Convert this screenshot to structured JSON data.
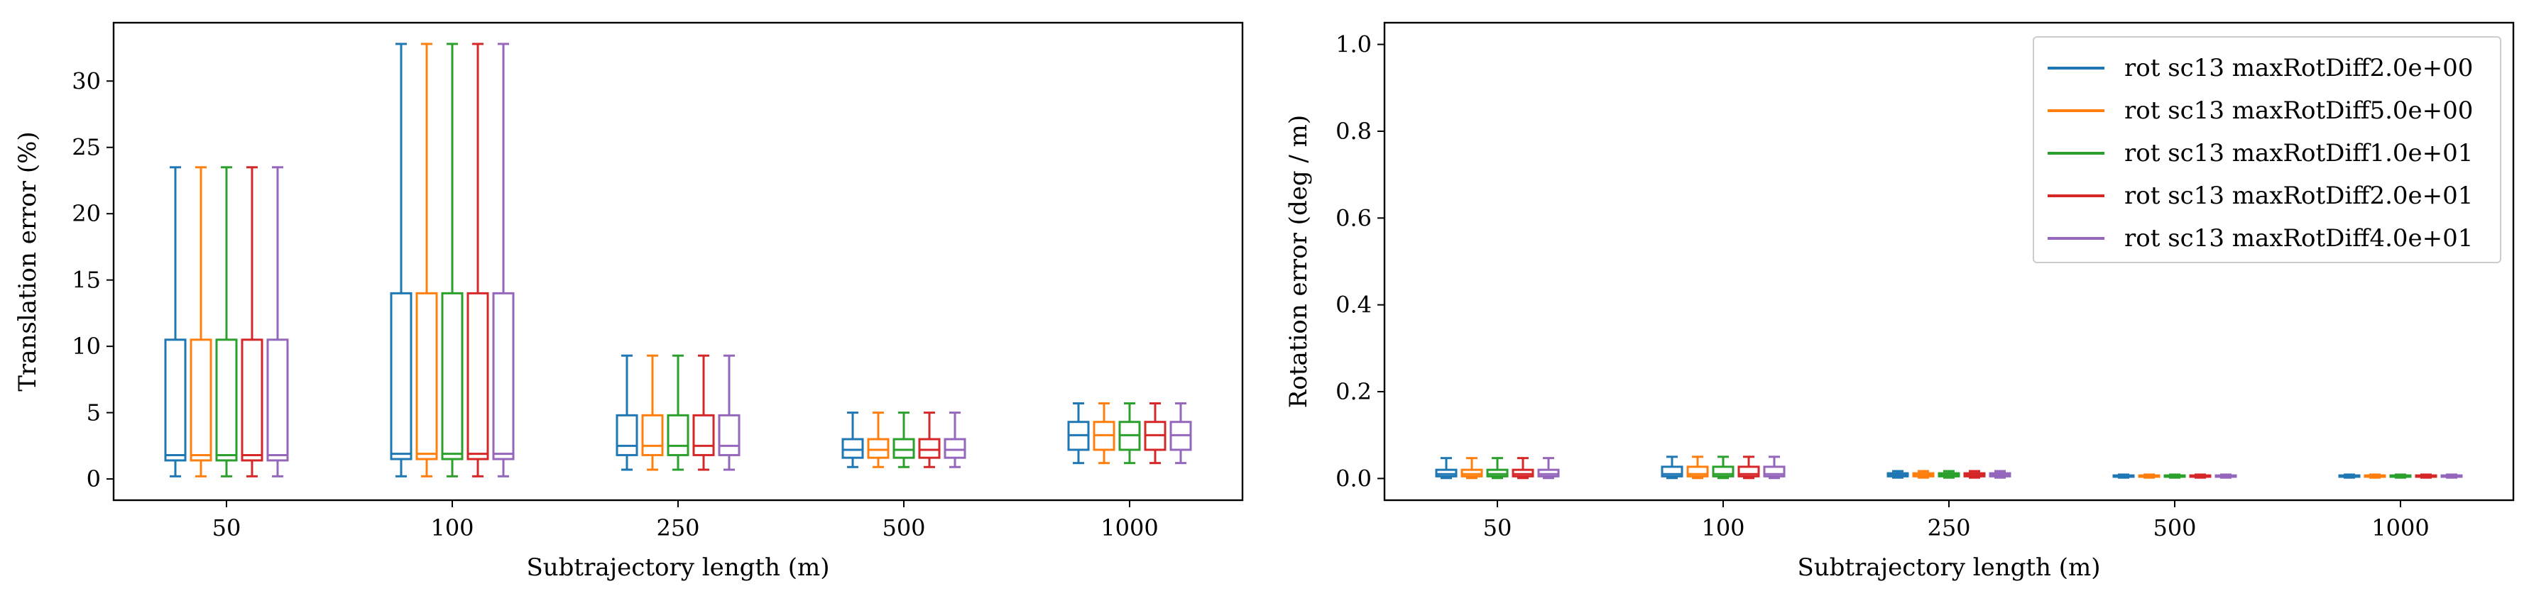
{
  "chart_data": [
    {
      "type": "box",
      "categories": [
        "50",
        "100",
        "250",
        "500",
        "1000"
      ],
      "xlabel": "Subtrajectory length (m)",
      "ylabel": "Translation error (%)",
      "ylim": [
        -1.6,
        34.4
      ],
      "yticks": [
        0,
        5,
        10,
        15,
        20,
        25,
        30
      ],
      "grid": false,
      "series": [
        {
          "name": "rot sc13 maxRotDiff2.0e+00",
          "color": "#1f77b4",
          "boxes": [
            {
              "whislo": 0.2,
              "q1": 1.4,
              "med": 1.8,
              "q3": 10.5,
              "whishi": 23.5
            },
            {
              "whislo": 0.2,
              "q1": 1.5,
              "med": 1.9,
              "q3": 14.0,
              "whishi": 32.8
            },
            {
              "whislo": 0.7,
              "q1": 1.8,
              "med": 2.5,
              "q3": 4.8,
              "whishi": 9.3
            },
            {
              "whislo": 0.9,
              "q1": 1.6,
              "med": 2.2,
              "q3": 3.0,
              "whishi": 5.0
            },
            {
              "whislo": 1.2,
              "q1": 2.2,
              "med": 3.3,
              "q3": 4.3,
              "whishi": 5.7
            }
          ]
        },
        {
          "name": "rot sc13 maxRotDiff5.0e+00",
          "color": "#ff7f0e",
          "boxes": [
            {
              "whislo": 0.2,
              "q1": 1.4,
              "med": 1.8,
              "q3": 10.5,
              "whishi": 23.5
            },
            {
              "whislo": 0.2,
              "q1": 1.5,
              "med": 1.9,
              "q3": 14.0,
              "whishi": 32.8
            },
            {
              "whislo": 0.7,
              "q1": 1.8,
              "med": 2.5,
              "q3": 4.8,
              "whishi": 9.3
            },
            {
              "whislo": 0.9,
              "q1": 1.6,
              "med": 2.2,
              "q3": 3.0,
              "whishi": 5.0
            },
            {
              "whislo": 1.2,
              "q1": 2.2,
              "med": 3.3,
              "q3": 4.3,
              "whishi": 5.7
            }
          ]
        },
        {
          "name": "rot sc13 maxRotDiff1.0e+01",
          "color": "#2ca02c",
          "boxes": [
            {
              "whislo": 0.2,
              "q1": 1.4,
              "med": 1.8,
              "q3": 10.5,
              "whishi": 23.5
            },
            {
              "whislo": 0.2,
              "q1": 1.5,
              "med": 1.9,
              "q3": 14.0,
              "whishi": 32.8
            },
            {
              "whislo": 0.7,
              "q1": 1.8,
              "med": 2.5,
              "q3": 4.8,
              "whishi": 9.3
            },
            {
              "whislo": 0.9,
              "q1": 1.6,
              "med": 2.2,
              "q3": 3.0,
              "whishi": 5.0
            },
            {
              "whislo": 1.2,
              "q1": 2.2,
              "med": 3.3,
              "q3": 4.3,
              "whishi": 5.7
            }
          ]
        },
        {
          "name": "rot sc13 maxRotDiff2.0e+01",
          "color": "#d62728",
          "boxes": [
            {
              "whislo": 0.2,
              "q1": 1.4,
              "med": 1.8,
              "q3": 10.5,
              "whishi": 23.5
            },
            {
              "whislo": 0.2,
              "q1": 1.5,
              "med": 1.9,
              "q3": 14.0,
              "whishi": 32.8
            },
            {
              "whislo": 0.7,
              "q1": 1.8,
              "med": 2.5,
              "q3": 4.8,
              "whishi": 9.3
            },
            {
              "whislo": 0.9,
              "q1": 1.6,
              "med": 2.2,
              "q3": 3.0,
              "whishi": 5.0
            },
            {
              "whislo": 1.2,
              "q1": 2.2,
              "med": 3.3,
              "q3": 4.3,
              "whishi": 5.7
            }
          ]
        },
        {
          "name": "rot sc13 maxRotDiff4.0e+01",
          "color": "#9467bd",
          "boxes": [
            {
              "whislo": 0.2,
              "q1": 1.4,
              "med": 1.8,
              "q3": 10.5,
              "whishi": 23.5
            },
            {
              "whislo": 0.2,
              "q1": 1.5,
              "med": 1.9,
              "q3": 14.0,
              "whishi": 32.8
            },
            {
              "whislo": 0.7,
              "q1": 1.8,
              "med": 2.5,
              "q3": 4.8,
              "whishi": 9.3
            },
            {
              "whislo": 0.9,
              "q1": 1.6,
              "med": 2.2,
              "q3": 3.0,
              "whishi": 5.0
            },
            {
              "whislo": 1.2,
              "q1": 2.2,
              "med": 3.3,
              "q3": 4.3,
              "whishi": 5.7
            }
          ]
        }
      ]
    },
    {
      "type": "box",
      "categories": [
        "50",
        "100",
        "250",
        "500",
        "1000"
      ],
      "xlabel": "Subtrajectory length (m)",
      "ylabel": "Rotation error (deg / m)",
      "ylim": [
        -0.05,
        1.05
      ],
      "yticks": [
        0.0,
        0.2,
        0.4,
        0.6,
        0.8,
        1.0
      ],
      "grid": false,
      "legend": "top-right",
      "series": [
        {
          "name": "rot sc13 maxRotDiff2.0e+00",
          "color": "#1f77b4",
          "boxes": [
            {
              "whislo": 0.001,
              "q1": 0.005,
              "med": 0.01,
              "q3": 0.02,
              "whishi": 0.047
            },
            {
              "whislo": 0.001,
              "q1": 0.005,
              "med": 0.01,
              "q3": 0.027,
              "whishi": 0.05
            },
            {
              "whislo": 0.002,
              "q1": 0.005,
              "med": 0.008,
              "q3": 0.012,
              "whishi": 0.017
            },
            {
              "whislo": 0.002,
              "q1": 0.004,
              "med": 0.005,
              "q3": 0.007,
              "whishi": 0.009
            },
            {
              "whislo": 0.002,
              "q1": 0.004,
              "med": 0.005,
              "q3": 0.007,
              "whishi": 0.009
            }
          ]
        },
        {
          "name": "rot sc13 maxRotDiff5.0e+00",
          "color": "#ff7f0e",
          "boxes": [
            {
              "whislo": 0.001,
              "q1": 0.005,
              "med": 0.01,
              "q3": 0.02,
              "whishi": 0.047
            },
            {
              "whislo": 0.001,
              "q1": 0.005,
              "med": 0.01,
              "q3": 0.027,
              "whishi": 0.05
            },
            {
              "whislo": 0.002,
              "q1": 0.005,
              "med": 0.008,
              "q3": 0.012,
              "whishi": 0.017
            },
            {
              "whislo": 0.002,
              "q1": 0.004,
              "med": 0.005,
              "q3": 0.007,
              "whishi": 0.009
            },
            {
              "whislo": 0.002,
              "q1": 0.004,
              "med": 0.005,
              "q3": 0.007,
              "whishi": 0.009
            }
          ]
        },
        {
          "name": "rot sc13 maxRotDiff1.0e+01",
          "color": "#2ca02c",
          "boxes": [
            {
              "whislo": 0.001,
              "q1": 0.005,
              "med": 0.01,
              "q3": 0.02,
              "whishi": 0.047
            },
            {
              "whislo": 0.001,
              "q1": 0.005,
              "med": 0.01,
              "q3": 0.027,
              "whishi": 0.05
            },
            {
              "whislo": 0.002,
              "q1": 0.005,
              "med": 0.008,
              "q3": 0.012,
              "whishi": 0.017
            },
            {
              "whislo": 0.002,
              "q1": 0.004,
              "med": 0.005,
              "q3": 0.007,
              "whishi": 0.009
            },
            {
              "whislo": 0.002,
              "q1": 0.004,
              "med": 0.005,
              "q3": 0.007,
              "whishi": 0.009
            }
          ]
        },
        {
          "name": "rot sc13 maxRotDiff2.0e+01",
          "color": "#d62728",
          "boxes": [
            {
              "whislo": 0.001,
              "q1": 0.005,
              "med": 0.01,
              "q3": 0.02,
              "whishi": 0.047
            },
            {
              "whislo": 0.001,
              "q1": 0.005,
              "med": 0.01,
              "q3": 0.027,
              "whishi": 0.05
            },
            {
              "whislo": 0.002,
              "q1": 0.005,
              "med": 0.008,
              "q3": 0.012,
              "whishi": 0.017
            },
            {
              "whislo": 0.002,
              "q1": 0.004,
              "med": 0.005,
              "q3": 0.007,
              "whishi": 0.009
            },
            {
              "whislo": 0.002,
              "q1": 0.004,
              "med": 0.005,
              "q3": 0.007,
              "whishi": 0.009
            }
          ]
        },
        {
          "name": "rot sc13 maxRotDiff4.0e+01",
          "color": "#9467bd",
          "boxes": [
            {
              "whislo": 0.001,
              "q1": 0.005,
              "med": 0.01,
              "q3": 0.02,
              "whishi": 0.047
            },
            {
              "whislo": 0.001,
              "q1": 0.005,
              "med": 0.01,
              "q3": 0.027,
              "whishi": 0.05
            },
            {
              "whislo": 0.002,
              "q1": 0.005,
              "med": 0.008,
              "q3": 0.012,
              "whishi": 0.017
            },
            {
              "whislo": 0.002,
              "q1": 0.004,
              "med": 0.005,
              "q3": 0.007,
              "whishi": 0.009
            },
            {
              "whislo": 0.002,
              "q1": 0.004,
              "med": 0.005,
              "q3": 0.007,
              "whishi": 0.009
            }
          ]
        }
      ]
    }
  ]
}
